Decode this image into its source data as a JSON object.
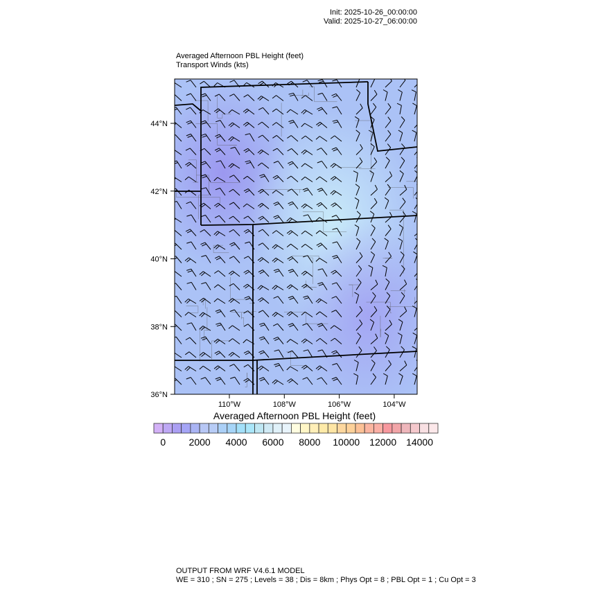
{
  "header": {
    "init": "Init: 2025-10-26_00:00:00",
    "valid": "Valid: 2025-10-27_06:00:00"
  },
  "titles": {
    "field": "Averaged Afternoon PBL Height   (feet)",
    "vector": "Transport Winds   (kts)"
  },
  "map": {
    "lat_labels": [
      "44°N",
      "42°N",
      "40°N",
      "38°N",
      "36°N"
    ],
    "lon_labels": [
      "110°W",
      "108°W",
      "106°W",
      "104°W"
    ],
    "background_colors": [
      "#a9b6f6",
      "#a6c8f6",
      "#b0d6f8",
      "#9ea4f2"
    ]
  },
  "colorbar": {
    "title": "Averaged Afternoon PBL Height  (feet)",
    "labels": [
      "0",
      "2000",
      "4000",
      "6000",
      "8000",
      "10000",
      "12000",
      "14000"
    ],
    "levels_step": 500,
    "colors": [
      "#d3b1f7",
      "#bea8f5",
      "#ab9ff3",
      "#a5a5f6",
      "#aab4f4",
      "#b7c7f5",
      "#b7ccf6",
      "#abd0f7",
      "#a6d5f8",
      "#a3e0f9",
      "#aae6f9",
      "#bfe7f3",
      "#d0eaf5",
      "#e0f1f9",
      "#e8f4fb",
      "#fffde0",
      "#fff6c6",
      "#ffefb8",
      "#feeaa8",
      "#fee5a4",
      "#fdd79e",
      "#fdd199",
      "#fcc196",
      "#fbb5a0",
      "#fbafa5",
      "#f7989e",
      "#f2a5a8",
      "#eeb6bb",
      "#f4c8cc",
      "#f8e0e3",
      "#fce8ea"
    ]
  },
  "footer": {
    "line1": "OUTPUT FROM WRF V4.6.1 MODEL",
    "line2": "WE = 310 ; SN = 275 ; Levels = 38 ; Dis = 8km ; Phys Opt = 8 ; PBL Opt = 1 ; Cu Opt = 3"
  }
}
